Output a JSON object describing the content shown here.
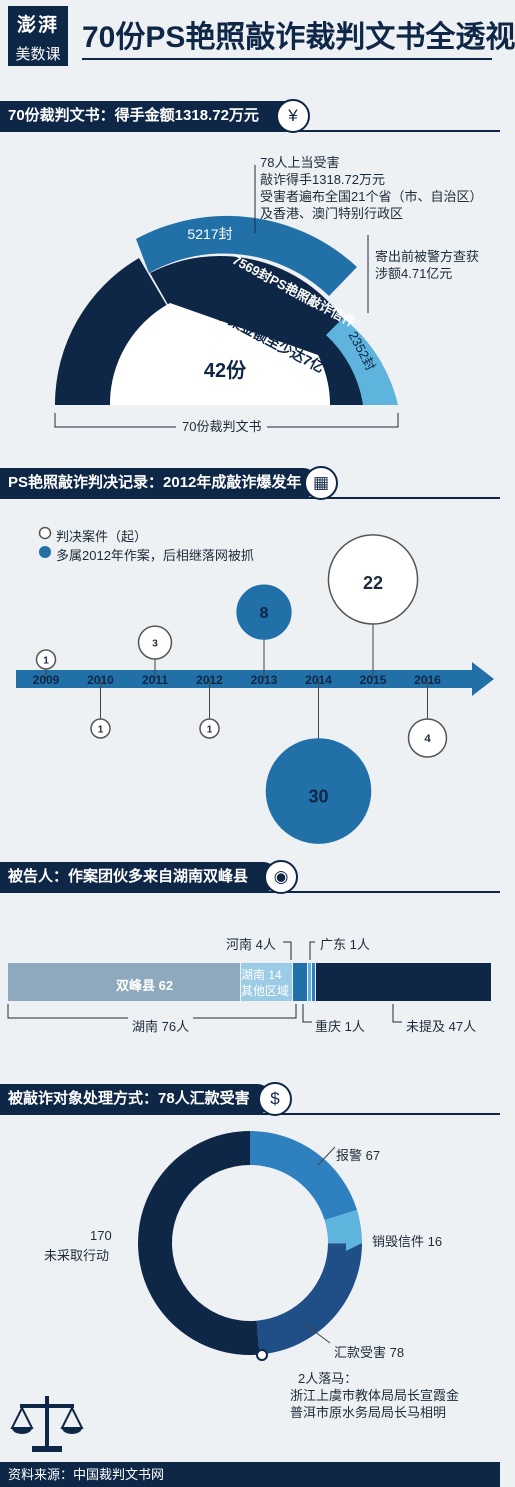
{
  "header": {
    "logo_top": "澎湃",
    "logo_bottom": "美数课",
    "title": "70份PS艳照敲诈裁判文书全透视"
  },
  "section1": {
    "heading": "70份裁判文书：得手金额1318.72万元",
    "icon": "money-icon",
    "note_victims": [
      "78人上当受害",
      "敲诈得手1318.72万元",
      "受害者遍布全国21个省（市、自治区）",
      "及香港、澳门特别行政区"
    ],
    "note_intercept": [
      "寄出前被警方查获",
      "涉额4.71亿元"
    ],
    "outer_center_label": "42份",
    "inner_amount": "涉案金额至少达7亿",
    "base_label": "70份裁判文书",
    "colors": {
      "dark": "#0f2747",
      "mid": "#2170a8",
      "light": "#5fb4dd"
    }
  },
  "section2": {
    "heading": "PS艳照敲诈判决记录：2012年成敲诈爆发年",
    "icon": "calendar-icon",
    "legend_cases": "判决案件（起）",
    "legend_2012": "多属2012年作案，后相继落网被抓"
  },
  "section3": {
    "heading": "被告人：作案团伙多来自湖南双峰县",
    "icon": "location-icon",
    "hunan_label": "湖南 76人",
    "henan": "河南 4人",
    "guangdong": "广东 1人",
    "chongqing": "重庆 1人",
    "unmentioned": "未提及 47人",
    "shuangfeng": "双峰县 62",
    "hunan_other_1": "湖南 14",
    "hunan_other_2": "其他区域"
  },
  "section4": {
    "heading": "被敲诈对象处理方式：78人汇款受害",
    "icon": "money-bag-icon",
    "none_value": "170",
    "none_label": "未采取行动",
    "police_label": "报警 67",
    "destroy_label": "销毁信件 16",
    "paid_label": "汇款受害 78",
    "officials": [
      "2人落马：",
      "浙江上虞市教体局局长宣霞金",
      "普洱市原水务局局长马相明"
    ],
    "scale_icon": "scales-icon"
  },
  "footer": {
    "source": "资料来源：中国裁判文书网"
  },
  "chart_data": [
    {
      "type": "pie",
      "title": "70份裁判文书：得手金额1318.72万元",
      "slices": [
        {
          "label": "5217封",
          "value": 5217
        },
        {
          "label": "7569封PS艳照敲诈信件",
          "value": 7569
        },
        {
          "label": "2352封",
          "value": 2352
        }
      ]
    },
    {
      "type": "scatter",
      "title": "PS艳照敲诈判决记录：2012年成敲诈爆发年",
      "x": [
        "2009",
        "2010",
        "2011",
        "2012",
        "2013",
        "2014",
        "2015",
        "2016"
      ],
      "values": [
        1,
        1,
        3,
        1,
        8,
        30,
        22,
        4
      ],
      "highlight": [
        "2013",
        "2014"
      ]
    },
    {
      "type": "bar",
      "title": "被告人：作案团伙多来自湖南双峰县",
      "categories": [
        "双峰县",
        "湖南其他区域",
        "河南",
        "广东",
        "重庆",
        "未提及"
      ],
      "values": [
        62,
        14,
        4,
        1,
        1,
        47
      ]
    },
    {
      "type": "pie",
      "title": "被敲诈对象处理方式：78人汇款受害",
      "categories": [
        "报警",
        "销毁信件",
        "汇款受害",
        "未采取行动"
      ],
      "values": [
        67,
        16,
        78,
        170
      ]
    }
  ]
}
